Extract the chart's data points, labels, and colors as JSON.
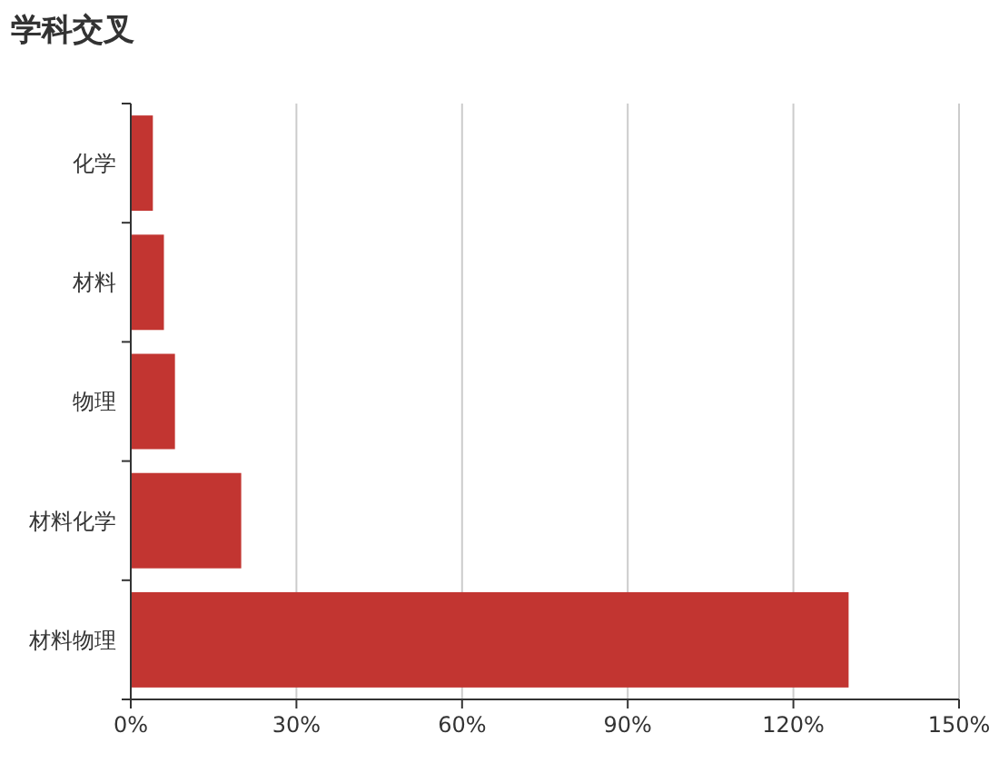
{
  "chart_data": {
    "type": "bar",
    "orientation": "horizontal",
    "title": "学科交叉",
    "categories": [
      "化学",
      "材料",
      "物理",
      "材料化学",
      "材料物理"
    ],
    "values": [
      4,
      6,
      8,
      20,
      130
    ],
    "color": "#c23531",
    "xlim": [
      0,
      150
    ],
    "xticks": [
      {
        "value": 0,
        "label": "0%"
      },
      {
        "value": 30,
        "label": "30%"
      },
      {
        "value": 60,
        "label": "60%"
      },
      {
        "value": 90,
        "label": "90%"
      },
      {
        "value": 120,
        "label": "120%"
      },
      {
        "value": 150,
        "label": "150%"
      }
    ],
    "grid": "x"
  }
}
